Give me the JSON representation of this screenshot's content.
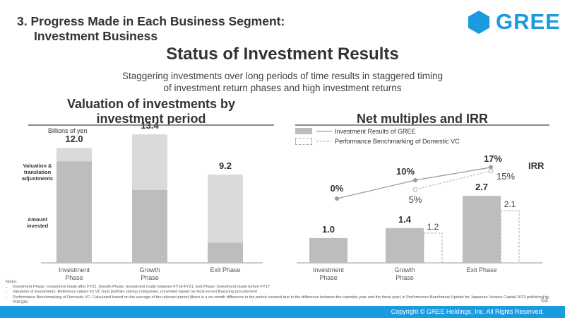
{
  "header": {
    "section_title_line1": "3. Progress Made in Each Business Segment:",
    "section_title_line2": "Investment Business",
    "logo_text": "GREE",
    "main_title": "Status of Investment Results",
    "subtitle_line1": "Staggering investments over long periods of time results in staggered timing",
    "subtitle_line2": "of investment return phases and high investment returns"
  },
  "left_panel": {
    "title_line1": "Valuation of investments by",
    "title_line2": "investment period",
    "unit": "Billions of yen",
    "label_valuation": "Valuation & translation adjustments",
    "label_amount": "Amount invested"
  },
  "right_panel": {
    "title": "Net multiples and IRR",
    "legend_gree": "Investment Results of GREE",
    "legend_bench": "Performance Benchmarking of Domestic VC",
    "irr_label": "IRR"
  },
  "chart_data": [
    {
      "type": "bar",
      "title": "Valuation of investments by investment period",
      "ylabel": "Billions of yen",
      "categories": [
        "Investment Phase",
        "Growth Phase",
        "Exit Phase"
      ],
      "totals": [
        12.0,
        13.4,
        9.2
      ],
      "total_labels": [
        "12.0",
        "13.4",
        "9.2"
      ],
      "series": [
        {
          "name": "Amount invested",
          "values": [
            10.6,
            7.6,
            2.1
          ]
        },
        {
          "name": "Valuation & translation adjustments",
          "values": [
            1.4,
            5.8,
            7.1
          ]
        }
      ],
      "ylim": [
        0,
        14
      ]
    },
    {
      "type": "bar",
      "title": "Net multiples and IRR",
      "categories": [
        "Investment Phase",
        "Growth Phase",
        "Exit Phase"
      ],
      "series": [
        {
          "name": "Investment Results of GREE",
          "values": [
            1.0,
            1.4,
            2.7
          ],
          "labels": [
            "1.0",
            "1.4",
            "2.7"
          ]
        },
        {
          "name": "Performance Benchmarking of Domestic VC",
          "values": [
            null,
            1.2,
            2.1
          ],
          "labels": [
            "",
            "1.2",
            "2.1"
          ]
        }
      ],
      "ylim": [
        0,
        3.3
      ],
      "irr": {
        "gree": [
          0,
          10,
          17
        ],
        "gree_labels": [
          "0%",
          "10%",
          "17%"
        ],
        "bench": [
          null,
          5,
          15
        ],
        "bench_labels": [
          "",
          "5%",
          "15%"
        ],
        "ylim": [
          0,
          20
        ]
      }
    }
  ],
  "notes": {
    "heading": "Notes:",
    "items": [
      "Investment Phase: Investment made after FY22, Growth Phase: Investment made between FY18-FY21, Exit Phase: Investment made before FY17",
      "Valuation of investments: Reference values for VC fund portfolio startup companies, converted based on most-recent financing procurement",
      "Performance Benchmarking of Domestic VC: Calculated based on the average of the relevant period (there is a six-month difference in the period covered due to the difference between the calendar year and the fiscal year) in Performance Benchmark Update for Japanese Venture Capital 2023 published by PREQIN"
    ]
  },
  "footer": {
    "page_number": "64",
    "copyright": "Copyright © GREE Holdings, Inc. All Rights Reserved."
  },
  "colors": {
    "brand": "#1a9be0",
    "bar_dark": "#bdbdbd",
    "bar_light": "#dadada",
    "line_gree": "#9a9a9a",
    "line_bench": "#bcbcbc"
  }
}
